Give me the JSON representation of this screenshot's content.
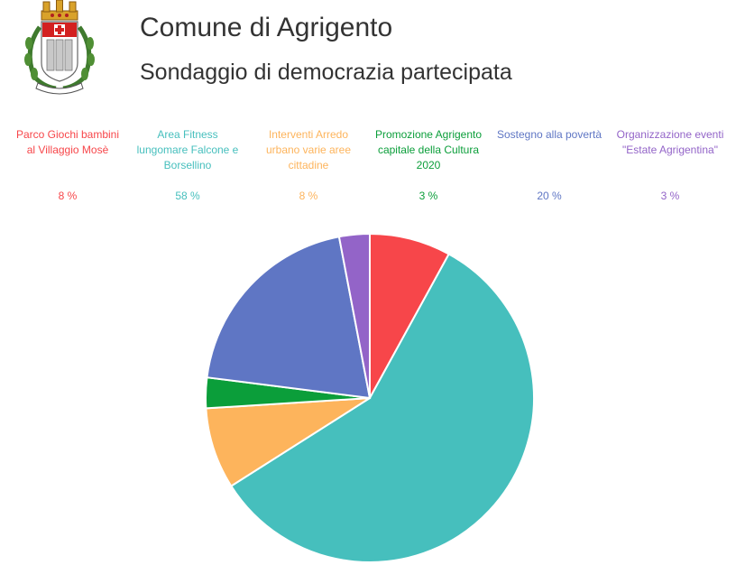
{
  "header": {
    "title": "Comune di Agrigento",
    "subtitle": "Sondaggio di democrazia partecipata"
  },
  "chart_data": {
    "type": "pie",
    "title": "",
    "legend_position": "top",
    "categories": [
      "Parco Giochi bambini al Villaggio Mosè",
      "Area Fitness lungomare Falcone e Borsellino",
      "Interventi Arredo urbano varie aree cittadine",
      "Promozione Agrigento capitale della Cultura 2020",
      "Sostegno alla povertà",
      "Organizzazione eventi \"Estate Agrigentina\""
    ],
    "values": [
      8,
      58,
      8,
      3,
      20,
      3
    ],
    "value_labels": [
      "8 %",
      "58 %",
      "8 %",
      "3 %",
      "20 %",
      "3 %"
    ],
    "colors": [
      "#f7464a",
      "#46bfbd",
      "#fdb45c",
      "#0b9e3a",
      "#5f76c4",
      "#9364c8"
    ]
  }
}
